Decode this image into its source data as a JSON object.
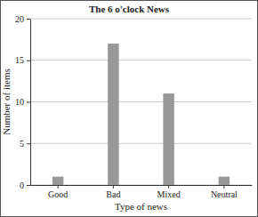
{
  "chart_data": {
    "type": "bar",
    "title": "The 6 o'clock News",
    "x_label": "Type of news",
    "y_label": "Number of items",
    "categories": [
      "Good",
      "Bad",
      "Mixed",
      "Neutral"
    ],
    "values": [
      1,
      17,
      11,
      1
    ],
    "color": "#999999",
    "ylim": [
      0,
      20
    ],
    "yticks": [
      0,
      5,
      10,
      15,
      20
    ],
    "grid": true
  }
}
